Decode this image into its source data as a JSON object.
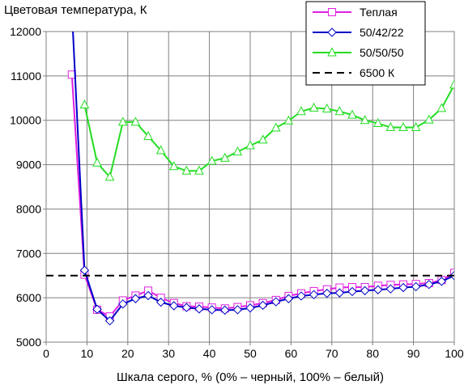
{
  "chart_data": {
    "type": "line",
    "title": "",
    "ylabel": "Цветовая температура, К",
    "xlabel": "Шкала серого, % (0% – черный, 100% – белый)",
    "xlim": [
      0,
      100
    ],
    "ylim": [
      5000,
      12000
    ],
    "xticks": [
      0,
      10,
      20,
      30,
      40,
      50,
      60,
      70,
      80,
      90,
      100
    ],
    "yticks": [
      5000,
      6000,
      7000,
      8000,
      9000,
      10000,
      11000,
      12000
    ],
    "grid": true,
    "legend_position": "top-right",
    "series": [
      {
        "name": "Теплая",
        "color": "#e020e0",
        "marker": "square",
        "x": [
          6.3,
          9.4,
          12.5,
          15.6,
          18.8,
          21.9,
          25,
          28.1,
          31.3,
          34.4,
          37.5,
          40.6,
          43.8,
          46.9,
          50,
          53.1,
          56.3,
          59.4,
          62.5,
          65.6,
          68.8,
          71.9,
          75,
          78.1,
          81.3,
          84.4,
          87.5,
          90.6,
          93.8,
          96.9,
          100
        ],
        "y": [
          11030,
          6520,
          5730,
          5580,
          5940,
          6050,
          6160,
          6000,
          5880,
          5810,
          5800,
          5780,
          5760,
          5790,
          5830,
          5880,
          5950,
          6040,
          6100,
          6150,
          6190,
          6230,
          6240,
          6240,
          6270,
          6290,
          6300,
          6310,
          6330,
          6400,
          6560
        ]
      },
      {
        "name": "50/42/22",
        "color": "#0000c8",
        "marker": "diamond",
        "x": [
          6.3,
          9.4,
          12.5,
          15.6,
          18.8,
          21.9,
          25,
          28.1,
          31.3,
          34.4,
          37.5,
          40.6,
          43.8,
          46.9,
          50,
          53.1,
          56.3,
          59.4,
          62.5,
          65.6,
          68.8,
          71.9,
          75,
          78.1,
          81.3,
          84.4,
          87.5,
          90.6,
          93.8,
          96.9,
          100
        ],
        "y": [
          12500,
          6620,
          5740,
          5480,
          5860,
          5980,
          6050,
          5900,
          5820,
          5780,
          5750,
          5730,
          5720,
          5730,
          5770,
          5830,
          5910,
          5980,
          6040,
          6070,
          6100,
          6110,
          6140,
          6160,
          6180,
          6200,
          6230,
          6250,
          6300,
          6370,
          6500
        ]
      },
      {
        "name": "50/50/50",
        "color": "#22dd22",
        "marker": "triangle",
        "x": [
          9.4,
          12.5,
          15.6,
          18.8,
          21.9,
          25,
          28.1,
          31.3,
          34.4,
          37.5,
          40.6,
          43.8,
          46.9,
          50,
          53.1,
          56.3,
          59.4,
          62.5,
          65.6,
          68.8,
          71.9,
          75,
          78.1,
          81.3,
          84.4,
          87.5,
          90.6,
          93.8,
          96.9,
          100
        ],
        "y": [
          10350,
          9040,
          8720,
          9960,
          9960,
          9640,
          9320,
          8960,
          8860,
          8860,
          9080,
          9150,
          9290,
          9430,
          9560,
          9830,
          9990,
          10200,
          10280,
          10260,
          10200,
          10120,
          10000,
          9930,
          9840,
          9840,
          9840,
          10010,
          10270,
          10800
        ]
      },
      {
        "name": "6500 К",
        "color": "#000000",
        "marker": "none",
        "dashed": true,
        "x": [
          0,
          100
        ],
        "y": [
          6500,
          6500
        ]
      }
    ]
  }
}
